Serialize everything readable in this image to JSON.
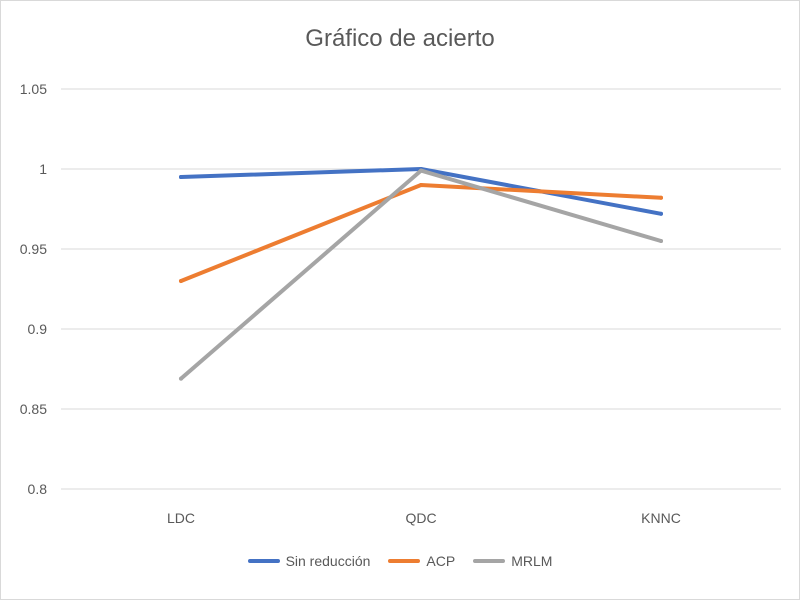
{
  "chart_data": {
    "type": "line",
    "title": "Gráfico de acierto",
    "xlabel": "",
    "ylabel": "",
    "categories": [
      "LDC",
      "QDC",
      "KNNC"
    ],
    "ylim": [
      0.8,
      1.05
    ],
    "yticks": [
      "0.8",
      "0.85",
      "0.9",
      "0.95",
      "1",
      "1.05"
    ],
    "grid": true,
    "legend_position": "bottom",
    "series": [
      {
        "name": "Sin reducción",
        "color": "#4472c4",
        "values": [
          0.995,
          1.0,
          0.972
        ]
      },
      {
        "name": "ACP",
        "color": "#ed7d31",
        "values": [
          0.93,
          0.99,
          0.982
        ]
      },
      {
        "name": "MRLM",
        "color": "#a5a5a5",
        "values": [
          0.869,
          0.999,
          0.955
        ]
      }
    ]
  }
}
